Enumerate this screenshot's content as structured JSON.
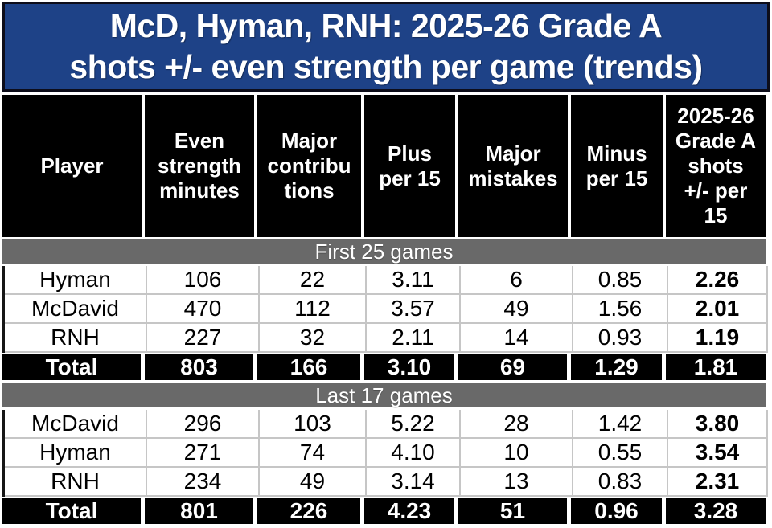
{
  "title_lines": [
    "McD, Hyman, RNH: 2025-26 Grade A",
    "shots +/- even strength per game (trends)"
  ],
  "columns": [
    "Player",
    "Even\nstrength\nminutes",
    "Major\ncontribu\ntions",
    "Plus\nper 15",
    "Major\nmistakes",
    "Minus\nper 15",
    "2025-26\nGrade A\nshots\n+/- per\n15"
  ],
  "sections": [
    {
      "label": "First 25 games",
      "rows": [
        [
          "Hyman",
          "106",
          "22",
          "3.11",
          "6",
          "0.85",
          "2.26"
        ],
        [
          "McDavid",
          "470",
          "112",
          "3.57",
          "49",
          "1.56",
          "2.01"
        ],
        [
          "RNH",
          "227",
          "32",
          "2.11",
          "14",
          "0.93",
          "1.19"
        ]
      ],
      "total": [
        "Total",
        "803",
        "166",
        "3.10",
        "69",
        "1.29",
        "1.81"
      ]
    },
    {
      "label": "Last 17 games",
      "rows": [
        [
          "McDavid",
          "296",
          "103",
          "5.22",
          "28",
          "1.42",
          "3.80"
        ],
        [
          "Hyman",
          "271",
          "74",
          "4.10",
          "10",
          "0.55",
          "3.54"
        ],
        [
          "RNH",
          "234",
          "49",
          "3.14",
          "13",
          "0.83",
          "2.31"
        ]
      ],
      "total": [
        "Total",
        "801",
        "226",
        "4.23",
        "51",
        "0.96",
        "3.28"
      ]
    }
  ],
  "colors": {
    "title_bg": "#1e4287",
    "title_text": "#ffffff",
    "header_bg": "#000000",
    "header_text": "#ffffff",
    "band_bg": "#696969",
    "band_text": "#ffffff",
    "total_bg": "#000000",
    "row_border": "#c6c6c6"
  },
  "chart_data": {
    "type": "table",
    "title": "McD, Hyman, RNH: 2025-26 Grade A shots +/- even strength per game (trends)",
    "columns": [
      "Player",
      "Even strength minutes",
      "Major contributions",
      "Plus per 15",
      "Major mistakes",
      "Minus per 15",
      "2025-26 Grade A shots +/- per 15"
    ],
    "sections": [
      {
        "label": "First 25 games",
        "rows": [
          [
            "Hyman",
            106,
            22,
            3.11,
            6,
            0.85,
            2.26
          ],
          [
            "McDavid",
            470,
            112,
            3.57,
            49,
            1.56,
            2.01
          ],
          [
            "RNH",
            227,
            32,
            2.11,
            14,
            0.93,
            1.19
          ]
        ],
        "total": [
          "Total",
          803,
          166,
          3.1,
          69,
          1.29,
          1.81
        ]
      },
      {
        "label": "Last 17 games",
        "rows": [
          [
            "McDavid",
            296,
            103,
            5.22,
            28,
            1.42,
            3.8
          ],
          [
            "Hyman",
            271,
            74,
            4.1,
            10,
            0.55,
            3.54
          ],
          [
            "RNH",
            234,
            49,
            3.14,
            13,
            0.83,
            2.31
          ]
        ],
        "total": [
          "Total",
          801,
          226,
          4.23,
          51,
          0.96,
          3.28
        ]
      }
    ]
  }
}
